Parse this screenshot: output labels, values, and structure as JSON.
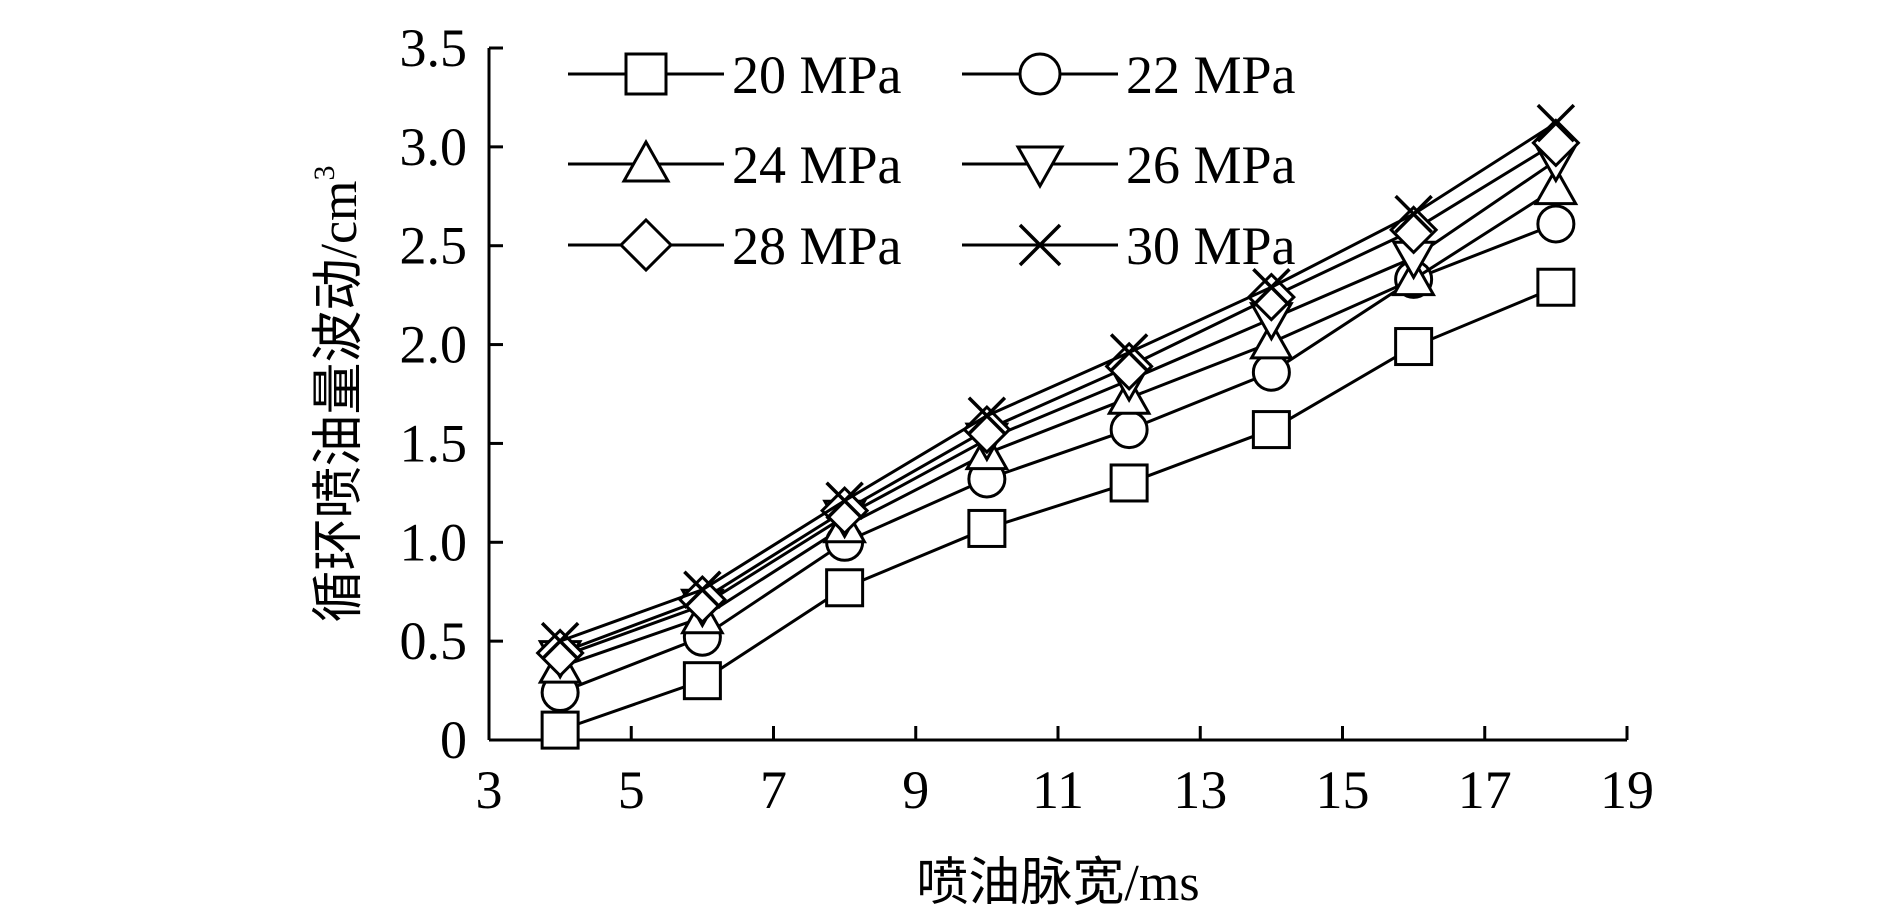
{
  "chart_data": {
    "type": "line",
    "xlabel": "喷油脉宽/ms",
    "ylabel": "循环喷油量波动/cm",
    "ylabel_superscript": "3",
    "xlim": [
      3,
      19
    ],
    "ylim": [
      0,
      3.5
    ],
    "x_ticks": [
      "3",
      "5",
      "7",
      "9",
      "11",
      "13",
      "15",
      "17",
      "19"
    ],
    "y_ticks": [
      "0",
      "0.5",
      "1.0",
      "1.5",
      "2.0",
      "2.5",
      "3.0",
      "3.5"
    ],
    "grid": false,
    "legend_placement": "top-left, inside plot, 3 rows x 2 columns",
    "x": [
      4,
      6,
      8,
      10,
      12,
      14,
      16,
      18
    ],
    "series": [
      {
        "name": "20 MPa",
        "marker": "square",
        "values": [
          0.05,
          0.3,
          0.77,
          1.07,
          1.3,
          1.57,
          1.99,
          2.29
        ]
      },
      {
        "name": "22 MPa",
        "marker": "circle",
        "values": [
          0.24,
          0.52,
          1.0,
          1.32,
          1.57,
          1.86,
          2.33,
          2.61
        ]
      },
      {
        "name": "24 MPa",
        "marker": "triangle-up",
        "values": [
          0.37,
          0.62,
          1.08,
          1.45,
          1.73,
          2.01,
          2.33,
          2.79
        ]
      },
      {
        "name": "26 MPa",
        "marker": "triangle-down",
        "values": [
          0.42,
          0.68,
          1.13,
          1.52,
          1.82,
          2.13,
          2.44,
          2.93
        ]
      },
      {
        "name": "28 MPa",
        "marker": "diamond",
        "values": [
          0.44,
          0.71,
          1.16,
          1.57,
          1.89,
          2.24,
          2.58,
          3.02
        ]
      },
      {
        "name": "30 MPa",
        "marker": "x",
        "values": [
          0.5,
          0.76,
          1.21,
          1.64,
          1.96,
          2.29,
          2.66,
          3.12
        ]
      }
    ]
  }
}
